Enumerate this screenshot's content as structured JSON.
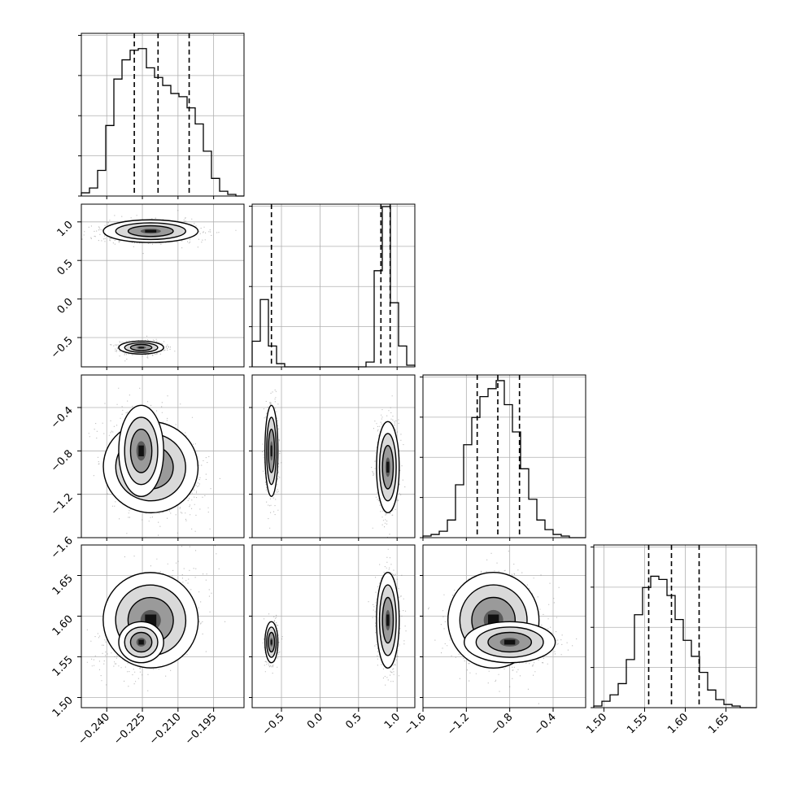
{
  "chart_data": {
    "type": "corner",
    "parameters": [
      {
        "range": [
          -0.2507,
          -0.1822
        ],
        "ticks": [
          -0.24,
          -0.225,
          -0.21,
          -0.195
        ],
        "tick_labels": [
          "−0.240",
          "−0.225",
          "−0.210",
          "−0.195"
        ],
        "quantiles": [
          -0.2284,
          -0.2184,
          -0.2053
        ]
      },
      {
        "range": [
          -0.88,
          1.23
        ],
        "ticks": [
          -0.5,
          0.0,
          0.5,
          1.0
        ],
        "tick_labels": [
          "−0.5",
          "0.0",
          "0.5",
          "1.0"
        ],
        "quantiles": [
          -0.63,
          0.79,
          0.91
        ]
      },
      {
        "range": [
          -1.6,
          -0.1
        ],
        "ticks": [
          -1.6,
          -1.2,
          -0.8,
          -0.4
        ],
        "tick_labels": [
          "−1.6",
          "−1.2",
          "−0.8",
          "−0.4"
        ],
        "quantiles": [
          -1.1,
          -0.91,
          -0.71
        ]
      },
      {
        "range": [
          1.4875,
          1.6875
        ],
        "ticks": [
          1.5,
          1.55,
          1.6,
          1.65
        ],
        "tick_labels": [
          "1.50",
          "1.55",
          "1.60",
          "1.65"
        ],
        "quantiles": [
          1.555,
          1.583,
          1.617
        ]
      }
    ],
    "histograms": [
      [
        0.02,
        0.05,
        0.16,
        0.44,
        0.73,
        0.85,
        0.91,
        0.92,
        0.8,
        0.74,
        0.69,
        0.64,
        0.62,
        0.55,
        0.45,
        0.28,
        0.11,
        0.03,
        0.01,
        0.0
      ],
      [
        0.16,
        0.42,
        0.13,
        0.02,
        0.0,
        0.0,
        0.0,
        0.0,
        0.0,
        0.0,
        0.0,
        0.0,
        0.0,
        0.0,
        0.03,
        0.6,
        1.0,
        0.4,
        0.13,
        0.01
      ],
      [
        0.01,
        0.02,
        0.04,
        0.11,
        0.33,
        0.58,
        0.75,
        0.88,
        0.93,
        0.98,
        0.83,
        0.66,
        0.43,
        0.24,
        0.11,
        0.05,
        0.02,
        0.01,
        0.0,
        0.0
      ],
      [
        0.01,
        0.04,
        0.08,
        0.15,
        0.3,
        0.58,
        0.75,
        0.82,
        0.8,
        0.7,
        0.55,
        0.42,
        0.32,
        0.22,
        0.11,
        0.05,
        0.02,
        0.01,
        0.0,
        0.0
      ]
    ],
    "clusters": [
      {
        "center": [
          -0.2215,
          0.88,
          -0.95,
          1.595
        ],
        "std": [
          0.0095,
          0.07,
          0.2,
          0.028
        ]
      },
      {
        "center": [
          -0.2255,
          -0.63,
          -0.8,
          1.568
        ],
        "std": [
          0.0045,
          0.04,
          0.2,
          0.012
        ]
      }
    ],
    "grid": true
  }
}
